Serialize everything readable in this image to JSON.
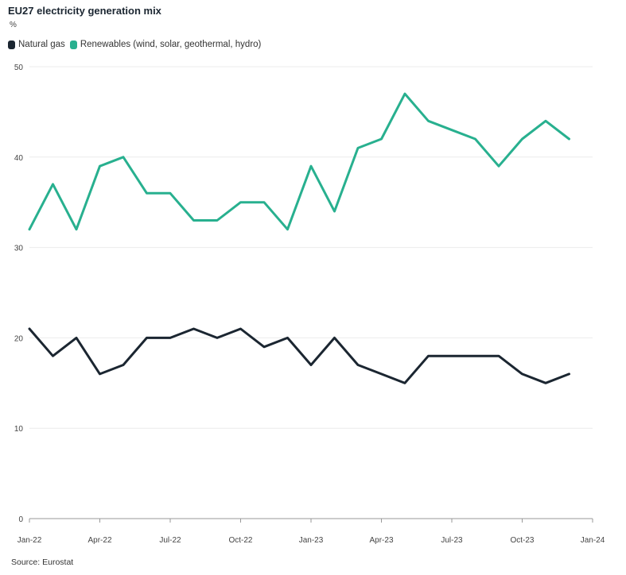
{
  "title": "EU27 electricity generation mix",
  "unit": "%",
  "source": "Source: Eurostat",
  "colors": {
    "natural_gas": "#1b2631",
    "renewables": "#28b08f",
    "grid": "#ececec",
    "axis": "#999999"
  },
  "legend": [
    {
      "label": "Natural gas",
      "color": "#1b2631"
    },
    {
      "label": "Renewables (wind, solar, geothermal, hydro)",
      "color": "#28b08f"
    }
  ],
  "chart_data": {
    "type": "line",
    "x": [
      "2022-01",
      "2022-02",
      "2022-03",
      "2022-04",
      "2022-05",
      "2022-06",
      "2022-07",
      "2022-08",
      "2022-09",
      "2022-10",
      "2022-11",
      "2022-12",
      "2023-01",
      "2023-02",
      "2023-03",
      "2023-04",
      "2023-05",
      "2023-06",
      "2023-07",
      "2023-08",
      "2023-09",
      "2023-10",
      "2023-11",
      "2023-12"
    ],
    "series": [
      {
        "name": "Natural gas",
        "color": "#1b2631",
        "values": [
          21,
          18,
          20,
          16,
          17,
          20,
          20,
          21,
          20,
          21,
          19,
          20,
          17,
          20,
          17,
          16,
          15,
          18,
          18,
          18,
          18,
          16,
          15,
          16
        ]
      },
      {
        "name": "Renewables (wind, solar, geothermal, hydro)",
        "color": "#28b08f",
        "values": [
          32,
          37,
          32,
          39,
          40,
          36,
          36,
          33,
          33,
          35,
          35,
          32,
          39,
          34,
          41,
          42,
          47,
          44,
          43,
          42,
          39,
          42,
          44,
          42
        ]
      }
    ],
    "x_ticks": [
      "Jan-22",
      "Apr-22",
      "Jul-22",
      "Oct-22",
      "Jan-23",
      "Apr-23",
      "Jul-23",
      "Oct-23",
      "Jan-24"
    ],
    "y_ticks": [
      0,
      10,
      20,
      30,
      40,
      50
    ],
    "ylim": [
      0,
      50
    ],
    "grid": true,
    "legend_position": "top-left"
  }
}
